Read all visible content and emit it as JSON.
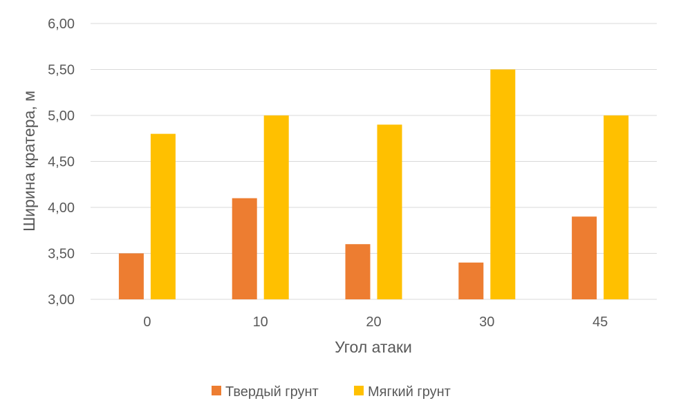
{
  "chart_data": {
    "type": "bar",
    "categories": [
      "0",
      "10",
      "20",
      "30",
      "45"
    ],
    "series": [
      {
        "name": "Твердый грунт",
        "color": "#ED7D31",
        "values": [
          3.5,
          4.1,
          3.6,
          3.4,
          3.9
        ]
      },
      {
        "name": "Мягкий грунт",
        "color": "#FFC000",
        "values": [
          4.8,
          5.0,
          4.9,
          5.5,
          5.0
        ]
      }
    ],
    "title": "",
    "xlabel": "Угол атаки",
    "ylabel": "Ширина кратера, м",
    "ylim": [
      3.0,
      6.0
    ],
    "yticks": [
      "3,00",
      "3,50",
      "4,00",
      "4,50",
      "5,00",
      "5,50",
      "6,00"
    ],
    "grid": true,
    "legend_position": "bottom"
  }
}
